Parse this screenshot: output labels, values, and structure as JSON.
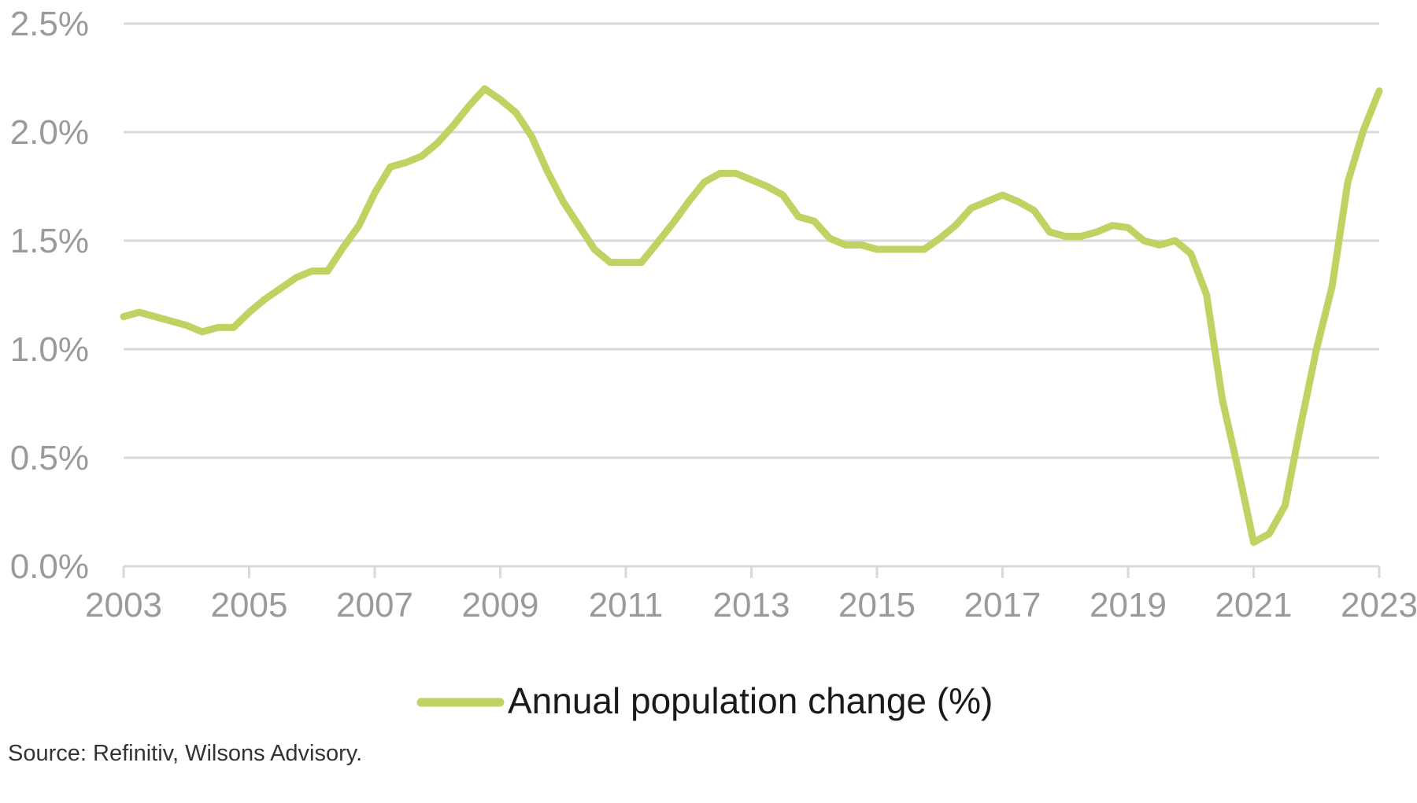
{
  "chart_data": {
    "type": "line",
    "title": "",
    "xlabel": "",
    "ylabel": "",
    "grid": true,
    "legend_position": "bottom-center",
    "xlim": [
      2003.0,
      2023.0
    ],
    "ylim": [
      0.0,
      2.5
    ],
    "x_ticks": [
      2003,
      2005,
      2007,
      2009,
      2011,
      2013,
      2015,
      2017,
      2019,
      2021,
      2023
    ],
    "x_tick_labels": [
      "2003",
      "2005",
      "2007",
      "2009",
      "2011",
      "2013",
      "2015",
      "2017",
      "2019",
      "2021",
      "2023"
    ],
    "y_ticks": [
      0.0,
      0.5,
      1.0,
      1.5,
      2.0,
      2.5
    ],
    "y_tick_labels": [
      "0.0%",
      "0.5%",
      "1.0%",
      "1.5%",
      "2.0%",
      "2.5%"
    ],
    "colors": {
      "line": "#c2d262",
      "grid": "#d9d9d9",
      "tick_text": "#9a9a9a"
    },
    "series": [
      {
        "name": "Annual population change (%)",
        "x": [
          2003.0,
          2003.25,
          2003.5,
          2003.75,
          2004.0,
          2004.25,
          2004.5,
          2004.75,
          2005.0,
          2005.25,
          2005.5,
          2005.75,
          2006.0,
          2006.25,
          2006.5,
          2006.75,
          2007.0,
          2007.25,
          2007.5,
          2007.75,
          2008.0,
          2008.25,
          2008.5,
          2008.75,
          2009.0,
          2009.25,
          2009.5,
          2009.75,
          2010.0,
          2010.25,
          2010.5,
          2010.75,
          2011.0,
          2011.25,
          2011.5,
          2011.75,
          2012.0,
          2012.25,
          2012.5,
          2012.75,
          2013.0,
          2013.25,
          2013.5,
          2013.75,
          2014.0,
          2014.25,
          2014.5,
          2014.75,
          2015.0,
          2015.25,
          2015.5,
          2015.75,
          2016.0,
          2016.25,
          2016.5,
          2016.75,
          2017.0,
          2017.25,
          2017.5,
          2017.75,
          2018.0,
          2018.25,
          2018.5,
          2018.75,
          2019.0,
          2019.25,
          2019.5,
          2019.75,
          2020.0,
          2020.25,
          2020.5,
          2020.75,
          2021.0,
          2021.25,
          2021.5,
          2021.75,
          2022.0,
          2022.25,
          2022.5,
          2022.75,
          2023.0
        ],
        "values": [
          1.15,
          1.17,
          1.15,
          1.13,
          1.11,
          1.08,
          1.1,
          1.1,
          1.17,
          1.23,
          1.28,
          1.33,
          1.36,
          1.36,
          1.47,
          1.57,
          1.72,
          1.84,
          1.86,
          1.89,
          1.95,
          2.03,
          2.12,
          2.2,
          2.15,
          2.09,
          1.98,
          1.82,
          1.68,
          1.57,
          1.46,
          1.4,
          1.4,
          1.4,
          1.49,
          1.58,
          1.68,
          1.77,
          1.81,
          1.81,
          1.78,
          1.75,
          1.71,
          1.61,
          1.59,
          1.51,
          1.48,
          1.48,
          1.46,
          1.46,
          1.46,
          1.46,
          1.51,
          1.57,
          1.65,
          1.68,
          1.71,
          1.68,
          1.64,
          1.54,
          1.52,
          1.52,
          1.54,
          1.57,
          1.56,
          1.5,
          1.48,
          1.5,
          1.44,
          1.25,
          0.77,
          0.45,
          0.11,
          0.15,
          0.28,
          0.65,
          1.0,
          1.29,
          1.77,
          2.01,
          2.19
        ]
      }
    ]
  },
  "source": "Source: Refinitiv, Wilsons Advisory."
}
